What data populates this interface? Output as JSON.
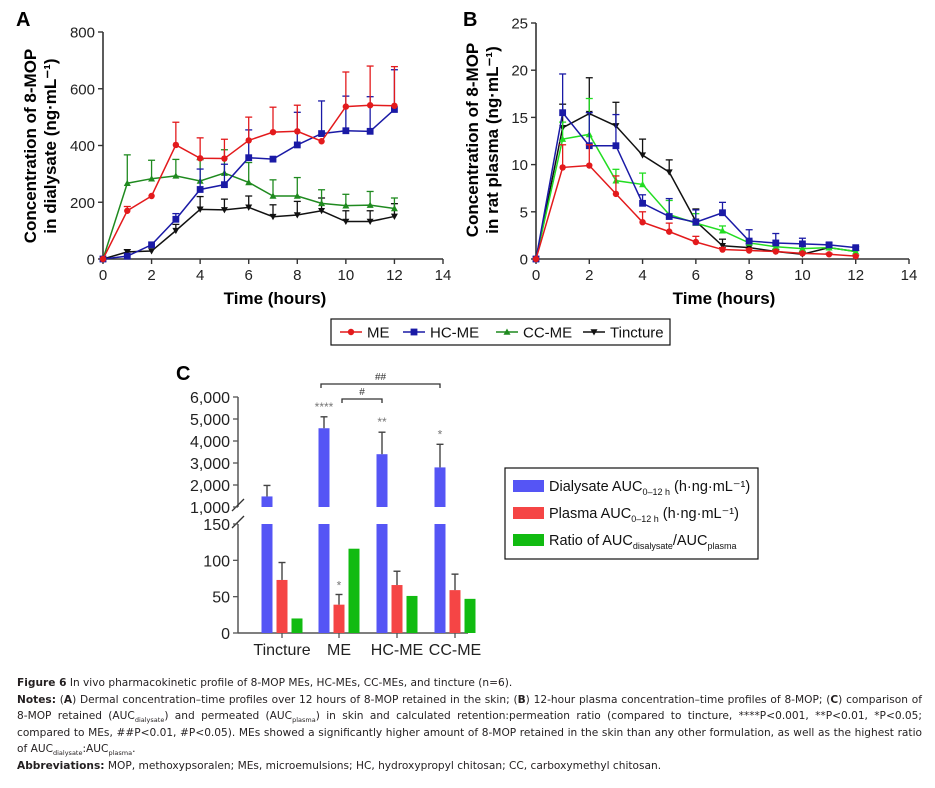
{
  "panels": {
    "A": "A",
    "B": "B",
    "C": "C"
  },
  "colors": {
    "ME": "#e31a1c",
    "HC-ME": "#1a1aa6",
    "CC-ME": "#1f8a1f",
    "CC-ME-B": "#22dd22",
    "Tincture": "#111111",
    "dialysate_bar": "#5555f5",
    "plasma_bar": "#f54545",
    "ratio_bar": "#11bb11"
  },
  "legend_lines": {
    "items": [
      "ME",
      "HC-ME",
      "CC-ME",
      "Tincture"
    ]
  },
  "chart_data": [
    {
      "id": "A",
      "type": "line",
      "panel_label": "A",
      "title": "",
      "xlabel": "Time (hours)",
      "ylabel_line1": "Concentration of 8-MOP",
      "ylabel_line2": "in dialysate (ng·mL⁻¹)",
      "xlim": [
        0,
        14
      ],
      "ylim": [
        0,
        800
      ],
      "xticks": [
        0,
        2,
        4,
        6,
        8,
        10,
        12,
        14
      ],
      "yticks": [
        0,
        200,
        400,
        600,
        800
      ],
      "grid": false,
      "x": [
        0,
        1,
        2,
        3,
        4,
        5,
        6,
        7,
        8,
        9,
        10,
        11,
        12
      ],
      "series": [
        {
          "name": "ME",
          "marker": "circle",
          "values": [
            0,
            170,
            222,
            402,
            355,
            354,
            418,
            447,
            450,
            415,
            537,
            542,
            540
          ],
          "errors": [
            0,
            15,
            0,
            80,
            72,
            68,
            82,
            88,
            92,
            0,
            122,
            138,
            138
          ]
        },
        {
          "name": "HC-ME",
          "marker": "square",
          "values": [
            0,
            10,
            50,
            140,
            245,
            262,
            357,
            352,
            402,
            442,
            452,
            450,
            527
          ],
          "errors": [
            0,
            0,
            0,
            20,
            72,
            72,
            98,
            0,
            115,
            115,
            122,
            122,
            140
          ]
        },
        {
          "name": "CC-ME",
          "marker": "triangle-up",
          "values": [
            0,
            267,
            283,
            293,
            275,
            303,
            270,
            222,
            222,
            196,
            188,
            190,
            178
          ],
          "errors": [
            0,
            100,
            65,
            58,
            75,
            82,
            70,
            57,
            65,
            48,
            40,
            48,
            37
          ]
        },
        {
          "name": "Tincture",
          "marker": "triangle-down",
          "values": [
            0,
            25,
            28,
            100,
            175,
            173,
            182,
            149,
            155,
            170,
            132,
            132,
            150
          ],
          "errors": [
            0,
            8,
            0,
            22,
            45,
            38,
            40,
            42,
            48,
            45,
            38,
            38,
            45
          ]
        }
      ]
    },
    {
      "id": "B",
      "type": "line",
      "panel_label": "B",
      "title": "",
      "xlabel": "Time (hours)",
      "ylabel_line1": "Concentration of 8-MOP",
      "ylabel_line2": "in rat plasma (ng·mL⁻¹)",
      "xlim": [
        0,
        14
      ],
      "ylim": [
        0,
        25
      ],
      "xticks": [
        0,
        2,
        4,
        6,
        8,
        10,
        12,
        14
      ],
      "yticks": [
        0,
        5,
        10,
        15,
        20,
        25
      ],
      "grid": false,
      "x": [
        0,
        1,
        2,
        3,
        4,
        5,
        6,
        7,
        8,
        9,
        10,
        11,
        12
      ],
      "series": [
        {
          "name": "ME",
          "marker": "circle",
          "values": [
            0,
            9.7,
            9.9,
            6.9,
            3.9,
            2.9,
            1.8,
            1.0,
            0.9,
            0.8,
            0.6,
            0.5,
            0.3
          ],
          "errors": [
            0,
            2.4,
            2.2,
            1.9,
            1.1,
            0.9,
            0.6,
            0.2,
            0.2,
            0.1,
            0.1,
            0.1,
            0.1
          ]
        },
        {
          "name": "HC-ME",
          "marker": "square",
          "values": [
            0,
            15.5,
            12.0,
            12.0,
            5.9,
            4.5,
            3.9,
            4.9,
            1.9,
            1.7,
            1.6,
            1.5,
            1.2
          ],
          "errors": [
            0,
            4.1,
            3.5,
            3.3,
            0.9,
            1.9,
            1.3,
            1.1,
            1.2,
            1.0,
            0.6,
            0.2,
            0.1
          ]
        },
        {
          "name": "CC-ME",
          "marker": "triangle-up",
          "values": [
            0,
            12.7,
            13.2,
            8.3,
            7.9,
            4.7,
            3.8,
            3.0,
            1.7,
            1.3,
            1.1,
            1.2,
            0.8
          ],
          "errors": [
            0,
            1.8,
            3.8,
            1.2,
            1.2,
            1.5,
            1.0,
            0.5,
            0.3,
            0.3,
            0.3,
            0.2,
            0.1
          ]
        },
        {
          "name": "Tincture",
          "marker": "triangle-down",
          "values": [
            0,
            13.9,
            15.4,
            14.1,
            11.0,
            9.2,
            4.0,
            1.4,
            1.2,
            0.8,
            0.5,
            1.2,
            0.8
          ],
          "errors": [
            0,
            2.5,
            3.8,
            2.5,
            1.7,
            1.3,
            1.3,
            0.7,
            0.4,
            0.2,
            0.2,
            0.2,
            0.1
          ]
        }
      ]
    },
    {
      "id": "C",
      "type": "bar",
      "panel_label": "C",
      "title": "",
      "xlabel": "",
      "ylabel": "",
      "categories": [
        "Tincture",
        "ME",
        "HC-ME",
        "CC-ME"
      ],
      "axis_break": {
        "lower": [
          0,
          150
        ],
        "upper": [
          1000,
          6000
        ]
      },
      "yticks_lower": [
        0,
        50,
        100,
        150
      ],
      "yticks_upper": [
        1000,
        2000,
        3000,
        4000,
        5000,
        6000
      ],
      "ytick_labels_lower": [
        "0",
        "50",
        "100",
        "150"
      ],
      "ytick_labels_upper": [
        "1,000",
        "2,000",
        "3,000",
        "4,000",
        "5,000",
        "6,000"
      ],
      "grid": false,
      "legend_position": "right",
      "series": [
        {
          "name": "Dialysate AUC0–12 h (h·ng·mL⁻¹)",
          "key": "dialysate",
          "values": [
            1480,
            4580,
            3400,
            2800
          ],
          "errors": [
            500,
            520,
            1000,
            1050
          ],
          "annotations": [
            "",
            "****",
            "**",
            "*"
          ]
        },
        {
          "name": "Plasma AUC0–12 h (h·ng·mL⁻¹)",
          "key": "plasma",
          "values": [
            73,
            39,
            66,
            59
          ],
          "errors": [
            24,
            14,
            19,
            22
          ],
          "annotations": [
            "",
            "*",
            "",
            ""
          ]
        },
        {
          "name": "Ratio of AUCdisalysate/AUCplasma",
          "key": "ratio",
          "values": [
            20,
            116,
            51,
            47
          ],
          "errors": [
            0,
            0,
            0,
            0
          ],
          "annotations": [
            "",
            "",
            "",
            ""
          ]
        }
      ],
      "brackets": [
        {
          "from": "ME",
          "to": "CC-ME",
          "label": "##"
        },
        {
          "from": "ME",
          "to": "HC-ME",
          "label": "#"
        }
      ],
      "legend": [
        {
          "key": "dialysate",
          "main": "Dialysate AUC",
          "sub": "0–12 h",
          "tail": " (h·ng·mL⁻¹)"
        },
        {
          "key": "plasma",
          "main": "Plasma AUC",
          "sub": "0–12 h",
          "tail": " (h·ng·mL⁻¹)"
        },
        {
          "key": "ratio",
          "main": "Ratio of AUC",
          "sub": "disalysate",
          "tail": "/AUC",
          "sub2": "plasma"
        }
      ]
    }
  ],
  "caption": {
    "figure_label": "Figure 6",
    "figure_text": " In vivo pharmacokinetic profile of 8-MOP MEs, HC-MEs, CC-MEs, and tincture (n=6).",
    "notes_label": "Notes:",
    "notes_A_open": " (",
    "notes_A": "A",
    "notes_A_text": ") Dermal concentration–time profiles over 12 hours of 8-MOP retained in the skin; (",
    "notes_B": "B",
    "notes_B_text": ") 12-hour plasma concentration–time profiles of 8-MOP; (",
    "notes_C": "C",
    "notes_C_text": ") comparison of 8-MOP retained (AUC",
    "sub_dialysate": "dialysate",
    "notes_mid1": ") and permeated (AUC",
    "sub_plasma": "plasma",
    "notes_mid2": ") in skin and calculated retention:permeation ratio (compared to tincture, ****P<0.001, **P<0.01, *P<0.05; compared to MEs, ##P<0.01, #P<0.05). MEs showed a significantly higher amount of 8-MOP retained in the skin than any other formulation, as well as the highest ratio of AUC",
    "notes_end1": ":AUC",
    "notes_end2": ".",
    "abbrev_label": "Abbreviations:",
    "abbrev_text": " MOP, methoxypsoralen; MEs, microemulsions; HC, hydroxypropyl chitosan; CC, carboxymethyl chitosan."
  }
}
